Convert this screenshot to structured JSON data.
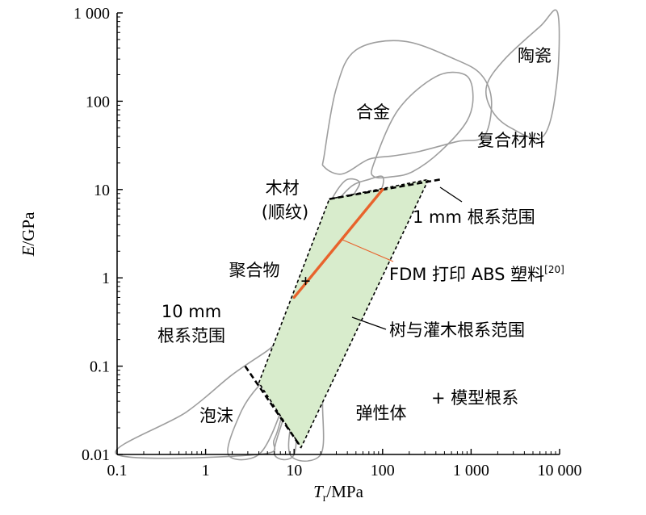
{
  "chart_data": {
    "type": "scatter",
    "title": "",
    "x_axis": {
      "label_italic": "T",
      "label_sub": "r",
      "label_rest": "/MPa",
      "scale": "log",
      "range": [
        0.1,
        10000
      ],
      "ticks": [
        {
          "value": 0.1,
          "label": "0.1"
        },
        {
          "value": 1,
          "label": "1"
        },
        {
          "value": 10,
          "label": "10"
        },
        {
          "value": 100,
          "label": "100"
        },
        {
          "value": 1000,
          "label": "1 000"
        },
        {
          "value": 10000,
          "label": "10 000"
        }
      ]
    },
    "y_axis": {
      "label_italic": "E",
      "label_rest": "/GPa",
      "scale": "log",
      "range": [
        0.01,
        1000
      ],
      "ticks": [
        {
          "value": 0.01,
          "label": "0.01"
        },
        {
          "value": 0.1,
          "label": "0.1"
        },
        {
          "value": 1,
          "label": "1"
        },
        {
          "value": 10,
          "label": "10"
        },
        {
          "value": 100,
          "label": "100"
        },
        {
          "value": 1000,
          "label": "1 000"
        }
      ]
    },
    "material_regions": [
      {
        "label": "陶瓷",
        "outline": [
          [
            1500,
            150
          ],
          [
            2400,
            300
          ],
          [
            6000,
            700
          ],
          [
            9500,
            1000
          ],
          [
            9300,
            160
          ],
          [
            6500,
            40
          ],
          [
            2800,
            50
          ],
          [
            1700,
            80
          ]
        ]
      },
      {
        "label": "合金",
        "outline": [
          [
            22,
            25
          ],
          [
            30,
            140
          ],
          [
            50,
            380
          ],
          [
            170,
            480
          ],
          [
            650,
            300
          ],
          [
            1300,
            200
          ],
          [
            1700,
            100
          ],
          [
            1400,
            40
          ],
          [
            700,
            35
          ],
          [
            260,
            27
          ],
          [
            130,
            24
          ],
          [
            70,
            22
          ],
          [
            35,
            15
          ],
          [
            22,
            18
          ]
        ]
      },
      {
        "label": "复合材料",
        "outline": [
          [
            80,
            20
          ],
          [
            150,
            80
          ],
          [
            400,
            190
          ],
          [
            850,
            200
          ],
          [
            1050,
            120
          ],
          [
            900,
            60
          ],
          [
            450,
            27
          ],
          [
            220,
            16
          ],
          [
            130,
            14
          ],
          [
            80,
            14
          ]
        ]
      },
      {
        "label": "木材\n(顺纹)",
        "outline": [
          [
            30,
            7
          ],
          [
            45,
            11
          ],
          [
            70,
            13
          ],
          [
            100,
            14
          ],
          [
            95,
            10
          ],
          [
            65,
            9
          ],
          [
            40,
            7.8
          ]
        ]
      },
      {
        "label": "聚合物",
        "outline": [
          [
            9,
            0.15
          ],
          [
            11,
            0.4
          ],
          [
            14,
            1.0
          ],
          [
            18,
            2.4
          ],
          [
            23,
            5.5
          ],
          [
            30,
            9.5
          ],
          [
            40,
            13
          ],
          [
            55,
            12
          ],
          [
            45,
            8
          ],
          [
            33,
            4
          ],
          [
            25,
            1.8
          ],
          [
            18,
            0.6
          ],
          [
            13,
            0.18
          ]
        ]
      },
      {
        "label": "泡沫",
        "outline": [
          [
            0.1,
            0.01
          ],
          [
            0.6,
            0.03
          ],
          [
            2,
            0.08
          ],
          [
            5,
            0.15
          ],
          [
            8,
            0.22
          ],
          [
            11,
            0.18
          ],
          [
            10,
            0.09
          ],
          [
            8,
            0.04
          ],
          [
            6,
            0.015
          ],
          [
            4,
            0.01
          ]
        ]
      },
      {
        "label": "",
        "outline": [
          [
            1.8,
            0.01
          ],
          [
            2.5,
            0.03
          ],
          [
            4,
            0.06
          ],
          [
            6,
            0.08
          ],
          [
            7.5,
            0.06
          ],
          [
            7,
            0.03
          ],
          [
            4,
            0.01
          ]
        ]
      },
      {
        "label": "",
        "outline": [
          [
            6,
            0.01
          ],
          [
            7.5,
            0.025
          ],
          [
            9,
            0.045
          ],
          [
            10.5,
            0.035
          ],
          [
            10,
            0.01
          ]
        ]
      },
      {
        "label": "弹性体",
        "outline": [
          [
            9,
            0.01
          ],
          [
            10,
            0.04
          ],
          [
            11,
            0.12
          ],
          [
            12,
            0.22
          ],
          [
            18,
            0.24
          ],
          [
            22,
            0.13
          ],
          [
            21,
            0.04
          ],
          [
            20,
            0.01
          ]
        ]
      }
    ],
    "series": [
      {
        "name": "1 mm 根系范围",
        "points": [
          [
            25,
            7.8
          ],
          [
            450,
            13
          ]
        ]
      },
      {
        "name": "10 mm 根系范围",
        "points": [
          [
            2.8,
            0.1
          ],
          [
            12,
            0.012
          ]
        ]
      },
      {
        "name": "树与灌木根系范围",
        "points": [
          [
            25,
            7.8
          ],
          [
            330,
            13
          ],
          [
            12,
            0.012
          ],
          [
            4,
            0.065
          ]
        ]
      },
      {
        "name": "FDM 打印 ABS 塑料",
        "points": [
          [
            10,
            0.6
          ],
          [
            100,
            10
          ]
        ]
      },
      {
        "name": "模型根系",
        "points": [
          [
            13.5,
            0.92
          ]
        ]
      }
    ],
    "annotations": {
      "mm1": "1 mm 根系范围",
      "mm10_a": "10 mm",
      "mm10_b": "根系范围",
      "fdm": "FDM 打印 ABS 塑料",
      "fdm_ref": "[20]",
      "trees": "树与灌木根系范围",
      "model": "+ 模型根系"
    },
    "colors": {
      "region_outline": "#9e9e9e",
      "shaded_fill": "#d8eccc",
      "fdm_line": "#e8632c",
      "boundary": "#000000"
    },
    "grid": false,
    "legend": "none"
  }
}
